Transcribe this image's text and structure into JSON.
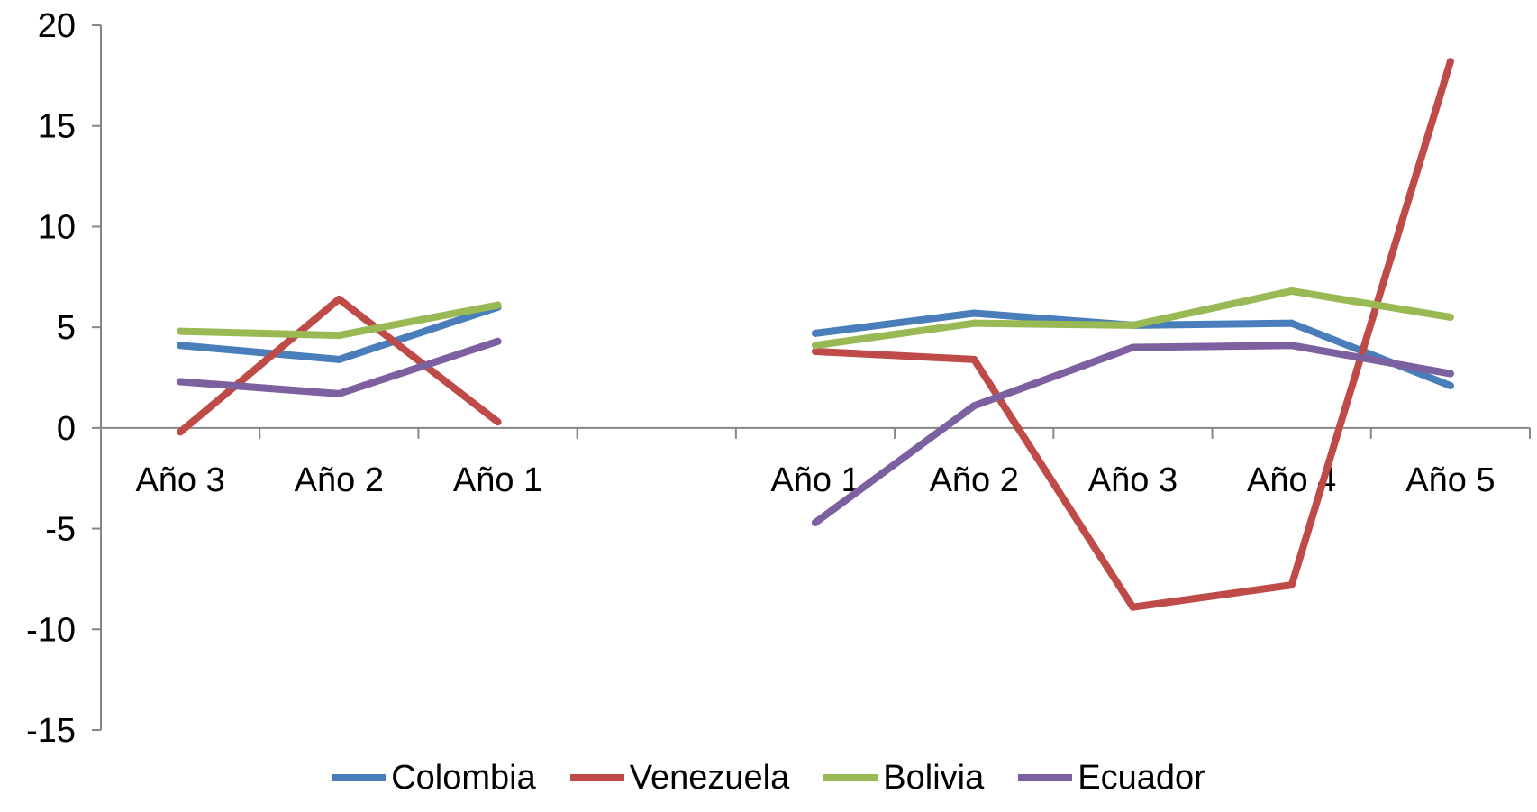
{
  "chart_data": {
    "type": "line",
    "title": "",
    "xlabel": "",
    "ylabel": "",
    "categories": [
      "Año 3",
      "Año 2",
      "Año 1",
      "",
      "Año 1",
      "Año 2",
      "Año 3",
      "Año 4",
      "Año 5"
    ],
    "ylim": [
      -15,
      20
    ],
    "yticks": [
      "20",
      "15",
      "10",
      "5",
      "0",
      "-5",
      "-10",
      "-15"
    ],
    "ytick_values": [
      20,
      15,
      10,
      5,
      0,
      -5,
      -10,
      -15
    ],
    "grid": false,
    "legend_position": "bottom",
    "series": [
      {
        "name": "Colombia",
        "color": "#4a7ebb",
        "values": [
          4.1,
          3.4,
          6.0,
          null,
          4.7,
          5.7,
          5.1,
          5.2,
          2.1
        ]
      },
      {
        "name": "Venezuela",
        "color": "#be4b48",
        "values": [
          -0.2,
          6.4,
          0.3,
          null,
          3.8,
          3.4,
          -8.9,
          -7.8,
          18.2
        ]
      },
      {
        "name": "Bolivia",
        "color": "#98b954",
        "values": [
          4.8,
          4.6,
          6.1,
          null,
          4.1,
          5.2,
          5.1,
          6.8,
          5.5
        ]
      },
      {
        "name": "Ecuador",
        "color": "#7d60a0",
        "values": [
          2.3,
          1.7,
          4.3,
          null,
          -4.7,
          1.1,
          4.0,
          4.1,
          2.7
        ]
      }
    ]
  }
}
